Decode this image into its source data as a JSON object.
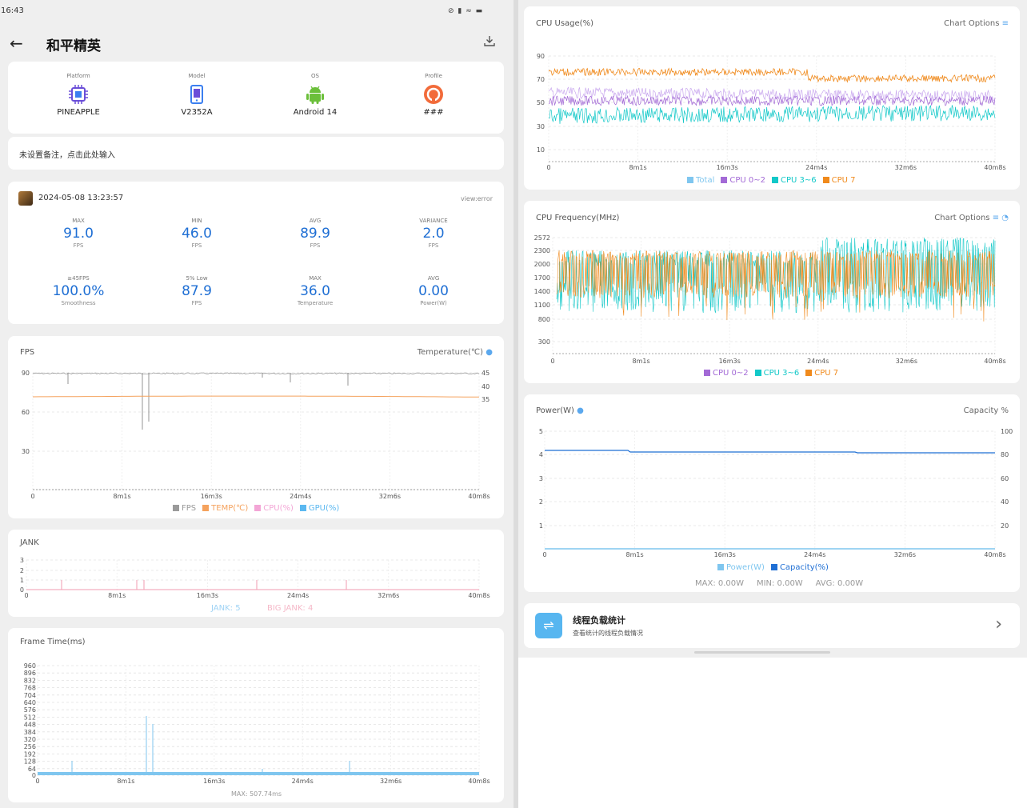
{
  "status_bar": {
    "time": "16:43",
    "icons_text": "⊘ ▮ ≈ ▬"
  },
  "header": {
    "title": "和平精英",
    "back_icon": "arrow-left-icon",
    "download_icon": "download-icon"
  },
  "device": [
    {
      "label": "Platform",
      "value": "PINEAPPLE",
      "icon": "chip-icon",
      "color": "#6b4fd8"
    },
    {
      "label": "Model",
      "value": "V2352A",
      "icon": "phone-icon",
      "color": "#3b7ff0"
    },
    {
      "label": "OS",
      "value": "Android 14",
      "icon": "android-icon",
      "color": "#6bbf3a"
    },
    {
      "label": "Profile",
      "value": "###",
      "icon": "profile-icon",
      "color": "#f26b3a"
    }
  ],
  "note_placeholder": "未设置备注，点击此处输入",
  "session": {
    "date": "2024-05-08 13:23:57",
    "view_error": "view:error",
    "stats": [
      {
        "key": "MAX",
        "value": "91.0",
        "unit": "FPS"
      },
      {
        "key": "MIN",
        "value": "46.0",
        "unit": "FPS"
      },
      {
        "key": "AVG",
        "value": "89.9",
        "unit": "FPS"
      },
      {
        "key": "VARIANCE",
        "value": "2.0",
        "unit": "FPS"
      },
      {
        "key": "≥45FPS",
        "value": "100.0%",
        "unit": "Smoothness"
      },
      {
        "key": "5% Low",
        "value": "87.9",
        "unit": "FPS"
      },
      {
        "key": "MAX",
        "value": "36.0",
        "unit": "Temperature"
      },
      {
        "key": "AVG",
        "value": "0.00",
        "unit": "Power(W)"
      }
    ]
  },
  "time_ticks": [
    "0",
    "8m1s",
    "16m3s",
    "24m4s",
    "32m6s",
    "40m8s"
  ],
  "fps_chart": {
    "title": "FPS",
    "right_title": "Temperature(℃)",
    "y_ticks": [
      "90",
      "60",
      "30"
    ],
    "y2_ticks": [
      "45",
      "40",
      "35"
    ],
    "legend": [
      {
        "name": "FPS",
        "color": "#9a9a9a"
      },
      {
        "name": "TEMP(℃)",
        "color": "#f5a25d"
      },
      {
        "name": "CPU(%)",
        "color": "#f3a6d6"
      },
      {
        "name": "GPU(%)",
        "color": "#5bb8f0"
      }
    ]
  },
  "jank_chart": {
    "title": "JANK",
    "y_ticks": [
      "3",
      "2",
      "1"
    ],
    "jank_label": "JANK: 5",
    "big_jank_label": "BIG JANK: 4"
  },
  "frametime_chart": {
    "title": "Frame Time(ms)",
    "y_ticks": [
      "960",
      "896",
      "832",
      "768",
      "704",
      "640",
      "576",
      "512",
      "448",
      "384",
      "320",
      "256",
      "192",
      "128",
      "64"
    ],
    "max_label": "MAX: 507.74ms"
  },
  "cpu_usage_chart": {
    "title": "CPU Usage(%)",
    "options_label": "Chart Options",
    "y_ticks": [
      "90",
      "70",
      "50",
      "30",
      "10"
    ],
    "legend": [
      {
        "name": "Total",
        "color": "#7fc6ef"
      },
      {
        "name": "CPU 0~2",
        "color": "#a36ad6"
      },
      {
        "name": "CPU 3~6",
        "color": "#12c8c8"
      },
      {
        "name": "CPU 7",
        "color": "#f08a1c"
      }
    ]
  },
  "cpu_freq_chart": {
    "title": "CPU Frequency(MHz)",
    "options_label": "Chart Options",
    "y_ticks": [
      "2572",
      "2300",
      "2000",
      "1700",
      "1400",
      "1100",
      "800",
      "300"
    ],
    "legend": [
      {
        "name": "CPU 0~2",
        "color": "#a36ad6"
      },
      {
        "name": "CPU 3~6",
        "color": "#12c8c8"
      },
      {
        "name": "CPU 7",
        "color": "#f08a1c"
      }
    ]
  },
  "power_chart": {
    "title": "Power(W)",
    "right_title": "Capacity %",
    "y_ticks": [
      "5",
      "4",
      "3",
      "2",
      "1"
    ],
    "y2_ticks": [
      "100",
      "80",
      "60",
      "40",
      "20"
    ],
    "legend": [
      {
        "name": "Power(W)",
        "color": "#7fc6ef"
      },
      {
        "name": "Capacity(%)",
        "color": "#1f6fd4"
      }
    ],
    "max": "MAX: 0.00W",
    "min": "MIN: 0.00W",
    "avg": "AVG: 0.00W"
  },
  "thread_card": {
    "title": "线程负载统计",
    "subtitle": "查看统计的线程负载情况",
    "icon": "share-icon",
    "arrow_icon": "chevron-right-icon"
  },
  "chart_data": [
    {
      "type": "line",
      "title": "FPS",
      "x_range": [
        "0",
        "40m8s"
      ],
      "series": [
        {
          "name": "FPS",
          "approx_value": 90,
          "dips": [
            46,
            58
          ]
        },
        {
          "name": "TEMP(℃)",
          "approx_value": 36
        }
      ],
      "ylim": [
        0,
        90
      ]
    },
    {
      "type": "bar",
      "title": "JANK",
      "ylim": [
        0,
        3
      ],
      "jank": 5,
      "big_jank": 4
    },
    {
      "type": "line",
      "title": "Frame Time(ms)",
      "ylim": [
        0,
        960
      ],
      "max": 507.74
    },
    {
      "type": "line",
      "title": "CPU Usage(%)",
      "ylim": [
        0,
        90
      ],
      "series": [
        {
          "name": "CPU 7",
          "approx_value": 73
        },
        {
          "name": "CPU 0~2",
          "approx_value": 55
        },
        {
          "name": "CPU 3~6",
          "approx_value": 45
        }
      ]
    },
    {
      "type": "line",
      "title": "CPU Frequency(MHz)",
      "ylim": [
        300,
        2572
      ],
      "series": [
        {
          "name": "CPU 3~6",
          "approx_range": [
            1100,
            2572
          ]
        },
        {
          "name": "CPU 7",
          "approx_range": [
            1300,
            2300
          ]
        }
      ]
    },
    {
      "type": "line",
      "title": "Power(W)",
      "ylim": [
        0,
        5
      ],
      "series": [
        {
          "name": "Power(W)",
          "approx_value": 0
        },
        {
          "name": "Capacity(%)",
          "values": [
            83,
            82,
            81
          ]
        }
      ]
    }
  ]
}
